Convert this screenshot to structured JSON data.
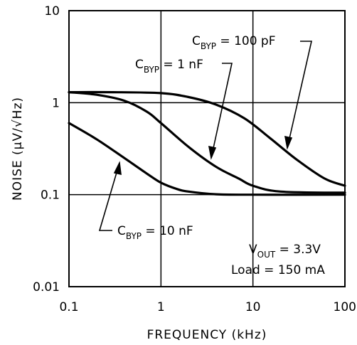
{
  "chart_data": {
    "type": "line",
    "xlabel": "FREQUENCY (kHz)",
    "ylabel": "NOISE (μV/√Hz)",
    "xscale": "log",
    "yscale": "log",
    "xlim": [
      0.1,
      100
    ],
    "ylim": [
      0.01,
      10
    ],
    "x_ticks": [
      "0.1",
      "1",
      "10",
      "100"
    ],
    "y_ticks": [
      "10",
      "1",
      "0.1",
      "0.01"
    ],
    "grid": true,
    "series": [
      {
        "name": "C_BYP = 100 pF",
        "label_main": "C",
        "label_sub": "BYP",
        "label_rest": " = 100 pF",
        "x": [
          0.1,
          0.3,
          1,
          2,
          4,
          8,
          15,
          30,
          60,
          100
        ],
        "y": [
          1.3,
          1.3,
          1.27,
          1.15,
          0.95,
          0.68,
          0.42,
          0.24,
          0.15,
          0.125
        ]
      },
      {
        "name": "C_BYP = 1 nF",
        "label_main": "C",
        "label_sub": "BYP",
        "label_rest": " = 1 nF",
        "x": [
          0.1,
          0.2,
          0.4,
          0.7,
          1,
          2,
          4,
          7,
          10,
          20,
          100
        ],
        "y": [
          1.3,
          1.22,
          1.05,
          0.8,
          0.6,
          0.33,
          0.2,
          0.15,
          0.125,
          0.108,
          0.105
        ]
      },
      {
        "name": "C_BYP = 10 nF",
        "label_main": "C",
        "label_sub": "BYP",
        "label_rest": " = 10 nF",
        "x": [
          0.1,
          0.2,
          0.4,
          0.7,
          1,
          1.5,
          2,
          4,
          10,
          100
        ],
        "y": [
          0.6,
          0.4,
          0.25,
          0.17,
          0.135,
          0.115,
          0.108,
          0.101,
          0.1,
          0.1
        ]
      }
    ],
    "annotations": {
      "vout_main": "V",
      "vout_sub": "OUT",
      "vout_rest": " = 3.3V",
      "load": "Load = 150 mA"
    }
  }
}
